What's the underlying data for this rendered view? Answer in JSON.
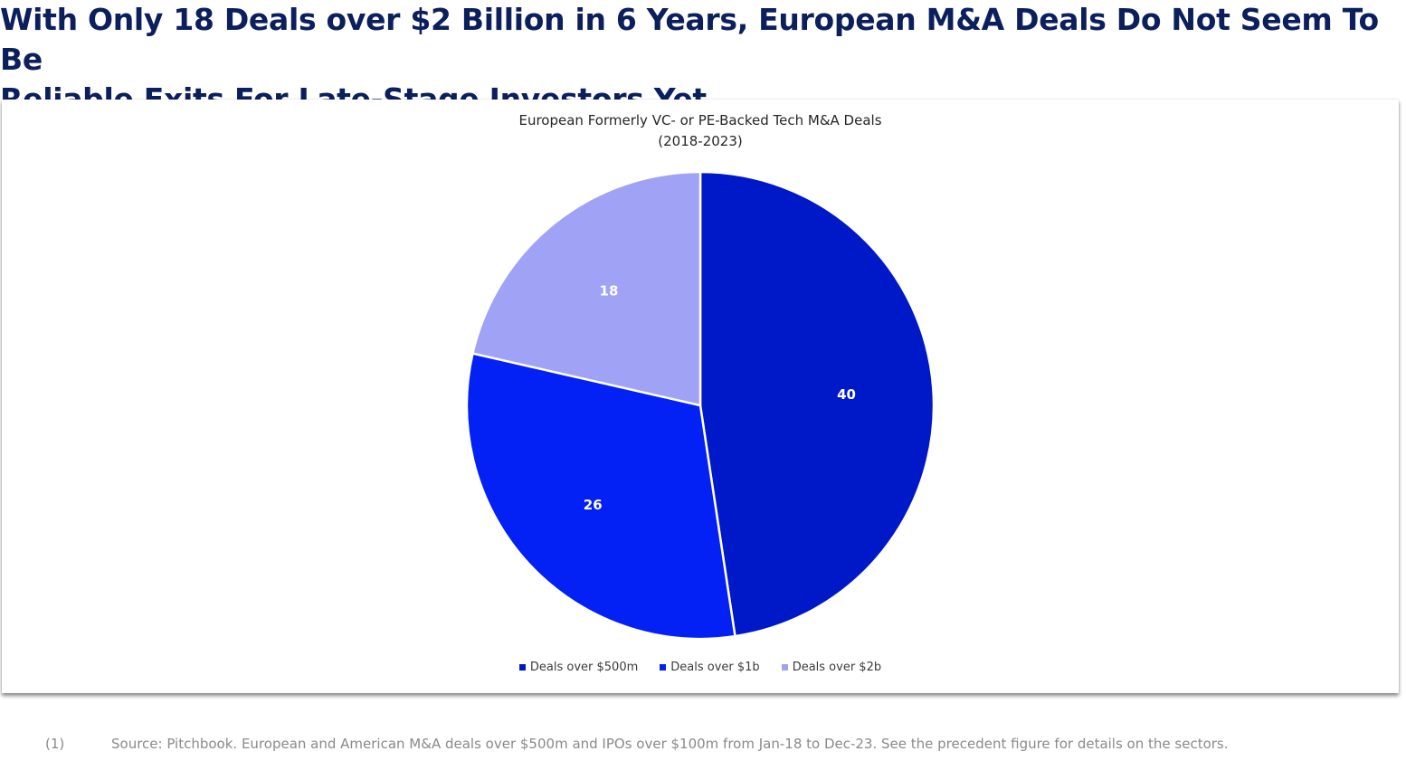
{
  "headline": {
    "line1": "With Only 18 Deals over $2 Billion in 6 Years, European M&A Deals Do Not Seem To Be",
    "line2": "Reliable Exits For Late-Stage Investors Yet"
  },
  "chart_data": {
    "type": "pie",
    "title": "European Formerly VC- or PE-Backed Tech M&A Deals",
    "subtitle": "(2018-2023)",
    "categories": [
      "Deals over $500m",
      "Deals over $1b",
      "Deals over $2b"
    ],
    "values": [
      40,
      26,
      18
    ],
    "data_labels": [
      "40",
      "26",
      "18"
    ],
    "colors": [
      "#0019c8",
      "#0320f5",
      "#a0a3f5"
    ],
    "start_angle": "12 o'clock",
    "direction": "clockwise",
    "legend_position": "bottom"
  },
  "footnote": {
    "number": "(1)",
    "text": "Source: Pitchbook. European and American M&A deals over $500m and IPOs over $100m from Jan-18 to Dec-23. See the precedent figure for details on the sectors."
  }
}
